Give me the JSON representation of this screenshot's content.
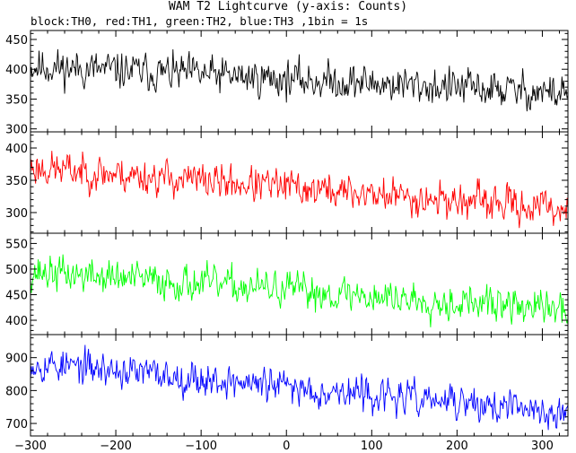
{
  "title": "WAM T2 Lightcurve (y-axis: Counts)",
  "subtitle": "block:TH0, red:TH1, green:TH2, blue:TH3 ,1bin = 1s",
  "chart_data": {
    "type": "line",
    "title": "WAM T2 Lightcurve (y-axis: Counts)",
    "xlabel": "",
    "ylabel": "",
    "xlim": [
      -300,
      330
    ],
    "x_ticks": [
      -300,
      -200,
      -100,
      0,
      100,
      200,
      300
    ],
    "x_start": -300,
    "x_end": 330,
    "bin": 1,
    "grid": false,
    "legend": "none",
    "panels": [
      {
        "name": "TH0",
        "color": "#000000",
        "ylim": [
          295,
          465
        ],
        "y_ticks": [
          300,
          350,
          400,
          450
        ],
        "y_tick_labels": [
          "300",
          "350",
          "400",
          "450"
        ],
        "start": 405,
        "end": 360,
        "noise": 18,
        "seed": 11
      },
      {
        "name": "TH1",
        "color": "#ff0000",
        "ylim": [
          268,
          425
        ],
        "y_ticks": [
          300,
          350,
          400
        ],
        "y_tick_labels": [
          "300",
          "350",
          "400"
        ],
        "start": 370,
        "end": 305,
        "noise": 16,
        "seed": 23
      },
      {
        "name": "TH2",
        "color": "#00ff00",
        "ylim": [
          372,
          570
        ],
        "y_ticks": [
          400,
          450,
          500,
          550
        ],
        "y_tick_labels": [
          "400",
          "450",
          "500",
          "550"
        ],
        "start": 495,
        "end": 420,
        "noise": 20,
        "seed": 37
      },
      {
        "name": "TH3",
        "color": "#0000ff",
        "ylim": [
          662,
          970
        ],
        "y_ticks": [
          700,
          800,
          900
        ],
        "y_tick_labels": [
          "700",
          "800",
          "900"
        ],
        "start": 885,
        "end": 730,
        "noise": 30,
        "seed": 53
      }
    ]
  }
}
